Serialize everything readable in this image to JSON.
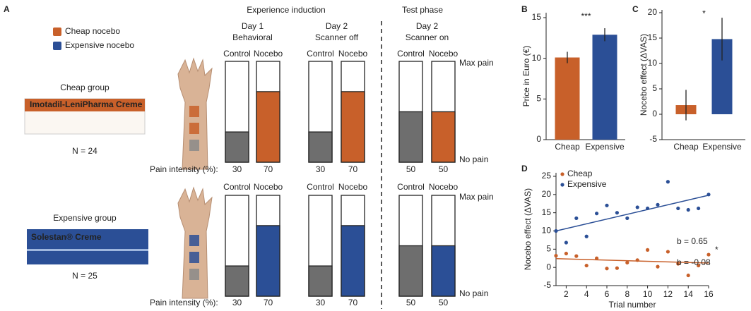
{
  "panel_a": {
    "label": "A",
    "legend": [
      {
        "name": "Cheap nocebo",
        "color": "#c8602a"
      },
      {
        "name": "Expensive nocebo",
        "color": "#2b4f96"
      }
    ],
    "headers": {
      "induction": "Experience induction",
      "test": "Test phase"
    },
    "columns": [
      {
        "day": "Day 1",
        "session": "Behavioral"
      },
      {
        "day": "Day 2",
        "session": "Scanner off"
      },
      {
        "day": "Day 2",
        "session": "Scanner on"
      }
    ],
    "condition_labels": [
      "Control",
      "Nocebo"
    ],
    "scale_labels": {
      "max": "Max pain",
      "min": "No pain"
    },
    "intensity_label": "Pain intensity (%):",
    "ylim": [
      0,
      100
    ],
    "control_color": "#6e6e6e",
    "groups": [
      {
        "name": "Cheap group",
        "n": "N = 24",
        "product": "Imotadil-LeniPharma Creme",
        "color": "#c8602a",
        "pain": [
          30,
          70,
          30,
          70,
          50,
          50
        ]
      },
      {
        "name": "Expensive group",
        "n": "N = 25",
        "product": "Solestan® Creme",
        "color": "#2b4f96",
        "pain": [
          30,
          70,
          30,
          70,
          50,
          50
        ]
      }
    ]
  },
  "chart_data": [
    {
      "type": "bar",
      "label": "B",
      "ylabel": "Price in Euro (€)",
      "categories": [
        "Cheap",
        "Expensive"
      ],
      "values": [
        10.1,
        12.9
      ],
      "errors": [
        0.7,
        0.8
      ],
      "colors": [
        "#c8602a",
        "#2b4f96"
      ],
      "ylim": [
        0,
        15
      ],
      "yticks": [
        0,
        5,
        10,
        15
      ],
      "significance": "***"
    },
    {
      "type": "bar",
      "label": "C",
      "ylabel": "Nocebo effect (ΔVAS)",
      "categories": [
        "Cheap",
        "Expensive"
      ],
      "values": [
        1.8,
        14.8
      ],
      "errors": [
        3,
        4.2
      ],
      "colors": [
        "#c8602a",
        "#2b4f96"
      ],
      "ylim": [
        -5,
        20
      ],
      "yticks": [
        -5,
        0,
        5,
        10,
        15,
        20
      ],
      "significance": "*"
    },
    {
      "type": "scatter",
      "label": "D",
      "ylabel": "Nocebo effect (ΔVAS)",
      "xlabel": "Trial number",
      "x": [
        1,
        2,
        3,
        4,
        5,
        6,
        7,
        8,
        9,
        10,
        11,
        12,
        13,
        14,
        15,
        16
      ],
      "series": [
        {
          "name": "Cheap",
          "color": "#c8602a",
          "values": [
            3.2,
            3.8,
            3.1,
            0.5,
            2.5,
            -0.3,
            -0.2,
            1.3,
            2.0,
            4.8,
            0.2,
            4.3,
            1.0,
            -2.2,
            0.5,
            3.5
          ],
          "trend": {
            "x": [
              1,
              16
            ],
            "values": [
              2.4,
              1.2
            ]
          },
          "slope_label": "b = -0.08"
        },
        {
          "name": "Expensive",
          "color": "#2b4f96",
          "values": [
            10,
            6.8,
            13.5,
            8.5,
            14.8,
            17,
            15,
            13.5,
            16.5,
            16.2,
            17.2,
            23.5,
            16.2,
            15.8,
            16.2,
            20
          ],
          "trend": {
            "x": [
              1,
              16
            ],
            "values": [
              10,
              19.8
            ]
          },
          "slope_label": "b = 0.65"
        }
      ],
      "significance": "*",
      "legend": "upper left",
      "xlim": [
        1,
        16
      ],
      "xticks": [
        2,
        4,
        6,
        8,
        10,
        12,
        14,
        16
      ],
      "ylim": [
        -5,
        25
      ],
      "yticks": [
        -5,
        0,
        5,
        10,
        15,
        20,
        25
      ]
    }
  ]
}
